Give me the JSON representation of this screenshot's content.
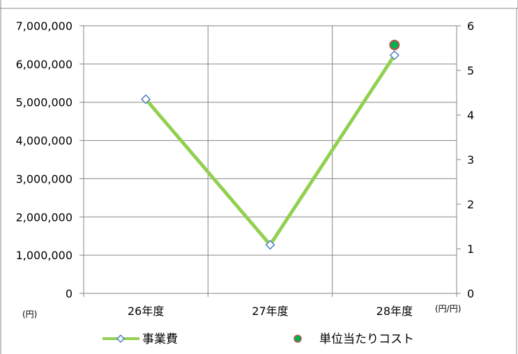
{
  "chart_data": {
    "type": "line",
    "categories": [
      "26年度",
      "27年度",
      "28年度"
    ],
    "y_axis_left": {
      "min": 0,
      "max": 7000000,
      "step": 1000000,
      "tick_labels": [
        "0",
        "1,000,000",
        "2,000,000",
        "3,000,000",
        "4,000,000",
        "5,000,000",
        "6,000,000",
        "7,000,000"
      ],
      "unit": "(円)"
    },
    "y_axis_right": {
      "min": 0,
      "max": 6,
      "step": 1,
      "tick_labels": [
        "0",
        "1",
        "2",
        "3",
        "4",
        "5",
        "6"
      ],
      "unit": "(円/円)"
    },
    "series": [
      {
        "name": "事業費",
        "axis": "left",
        "style": "line-diamond",
        "values": [
          5080000,
          1270000,
          6230000
        ],
        "line_color": "#92d050",
        "marker_color": "#4f81bd"
      },
      {
        "name": "単位当たりコスト",
        "axis": "right",
        "style": "marker-circle",
        "values": [
          null,
          null,
          5.57
        ],
        "marker_fill": "#00b050",
        "marker_edge": "#c0504d"
      }
    ],
    "grid": true,
    "legend_position": "bottom"
  }
}
